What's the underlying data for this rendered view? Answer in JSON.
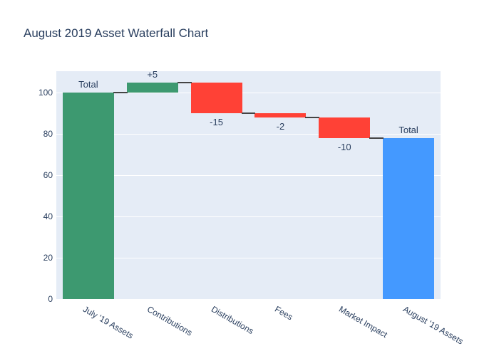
{
  "page": {
    "title": "August 2019 Asset Waterfall Chart"
  },
  "chart_data": {
    "type": "waterfall",
    "title": "August 2019 Asset Waterfall Chart",
    "categories": [
      "July '19 Assets",
      "Contributions",
      "Distributions",
      "Fees",
      "Market Impact",
      "August '19 Assets"
    ],
    "values": [
      100,
      5,
      -15,
      -2,
      -10,
      78
    ],
    "measures": [
      "increasing",
      "increasing",
      "decreasing",
      "decreasing",
      "decreasing",
      "total"
    ],
    "bars": [
      {
        "category": "July '19 Assets",
        "label": "Total",
        "start": 0,
        "end": 100,
        "color_role": "increasing",
        "label_position": "above"
      },
      {
        "category": "Contributions",
        "label": "+5",
        "start": 100,
        "end": 105,
        "color_role": "increasing",
        "label_position": "above"
      },
      {
        "category": "Distributions",
        "label": "-15",
        "start": 105,
        "end": 90,
        "color_role": "decreasing",
        "label_position": "below"
      },
      {
        "category": "Fees",
        "label": "-2",
        "start": 90,
        "end": 88,
        "color_role": "decreasing",
        "label_position": "below"
      },
      {
        "category": "Market Impact",
        "label": "-10",
        "start": 88,
        "end": 78,
        "color_role": "decreasing",
        "label_position": "below"
      },
      {
        "category": "August '19 Assets",
        "label": "Total",
        "start": 0,
        "end": 78,
        "color_role": "total",
        "label_position": "above"
      }
    ],
    "running_totals": [
      100,
      105,
      90,
      88,
      78,
      78
    ],
    "yticks": [
      0,
      20,
      40,
      60,
      80,
      100
    ],
    "ylim": [
      0,
      110.53
    ],
    "xlabel": "",
    "ylabel": "",
    "xtick_angle": 30,
    "grid": true,
    "legend_position": "none",
    "colors": {
      "increasing": "#3D9970",
      "decreasing": "#FF4136",
      "total": "#4499FF",
      "connector": "#444444",
      "plot_bg": "#E5ECF6",
      "gridline": "#FFFFFF",
      "text": "#2A3F5F"
    }
  }
}
